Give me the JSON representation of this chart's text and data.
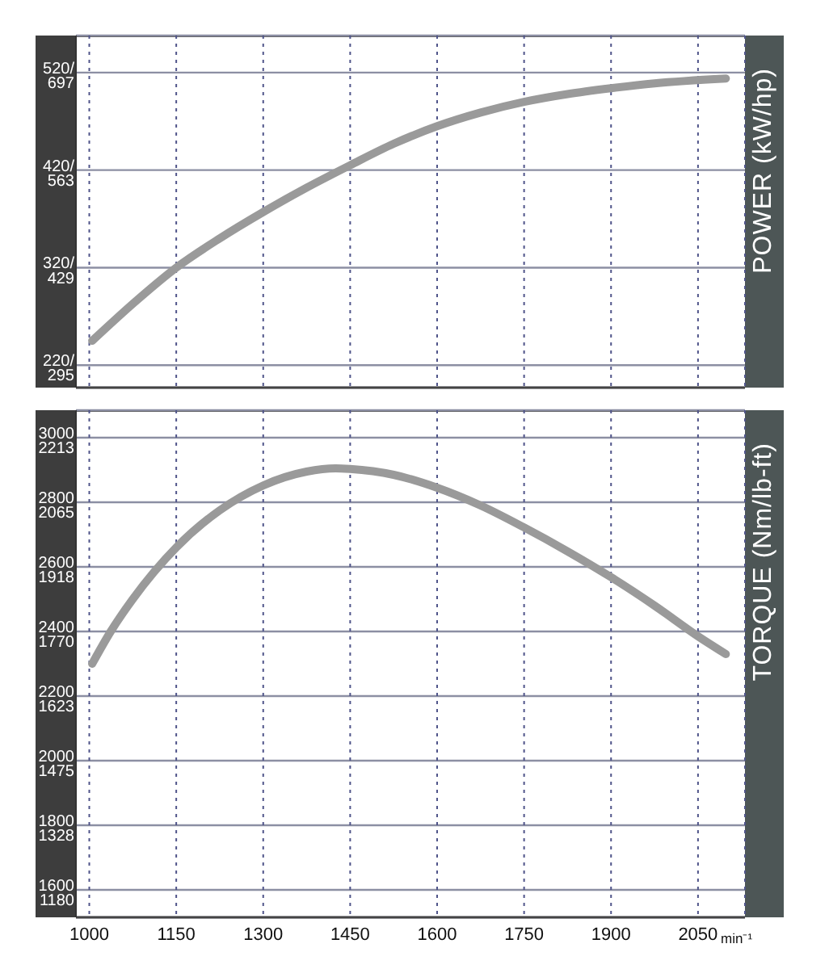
{
  "chart_data": [
    {
      "type": "line",
      "y2label": "POWER (kW/hp)",
      "x": [
        1005,
        1079,
        1150,
        1225,
        1300,
        1375,
        1450,
        1525,
        1600,
        1675,
        1750,
        1825,
        1900,
        1975,
        2098
      ],
      "values": [
        245,
        285,
        320,
        350,
        377,
        402,
        425,
        447,
        465,
        479,
        490,
        498,
        504,
        509,
        514
      ],
      "color": "#9a9a9a",
      "xlim": [
        977,
        2131
      ],
      "xticks": [
        1000,
        1150,
        1300,
        1450,
        1600,
        1750,
        1900,
        2050
      ],
      "ylim": [
        197,
        558
      ],
      "yticks": [
        {
          "value": 220,
          "label": "220/"
        },
        {
          "value": 320,
          "label": "320/"
        },
        {
          "value": 420,
          "label": "420/"
        },
        {
          "value": 520,
          "label": "520/"
        }
      ],
      "y2lim": [
        264.2,
        748.3
      ],
      "y2ticks": [
        295,
        429,
        563,
        697
      ],
      "grid": true,
      "tick_labels": "y"
    },
    {
      "type": "line",
      "y2label": "TORQUE (Nm/lb-ft)",
      "xlabel": "min⁻¹",
      "x": [
        1005,
        1037,
        1075,
        1150,
        1225,
        1300,
        1375,
        1425,
        1450,
        1525,
        1600,
        1675,
        1750,
        1825,
        1900,
        1975,
        2050,
        2098
      ],
      "values": [
        2300,
        2400,
        2500,
        2660,
        2775,
        2852,
        2895,
        2905,
        2903,
        2885,
        2845,
        2790,
        2722,
        2648,
        2568,
        2480,
        2385,
        2330
      ],
      "color": "#9a9a9a",
      "xlim": [
        977,
        2131
      ],
      "xticks": [
        1000,
        1150,
        1300,
        1450,
        1600,
        1750,
        1900,
        2050
      ],
      "ylim": [
        1515,
        3085
      ],
      "yticks": [
        1600,
        1800,
        2000,
        2200,
        2400,
        2600,
        2800,
        3000
      ],
      "y2lim": [
        1117.5,
        2275.5
      ],
      "y2ticks": [
        1180,
        1328,
        1475,
        1623,
        1770,
        1918,
        2065,
        2213
      ],
      "grid": true
    }
  ]
}
